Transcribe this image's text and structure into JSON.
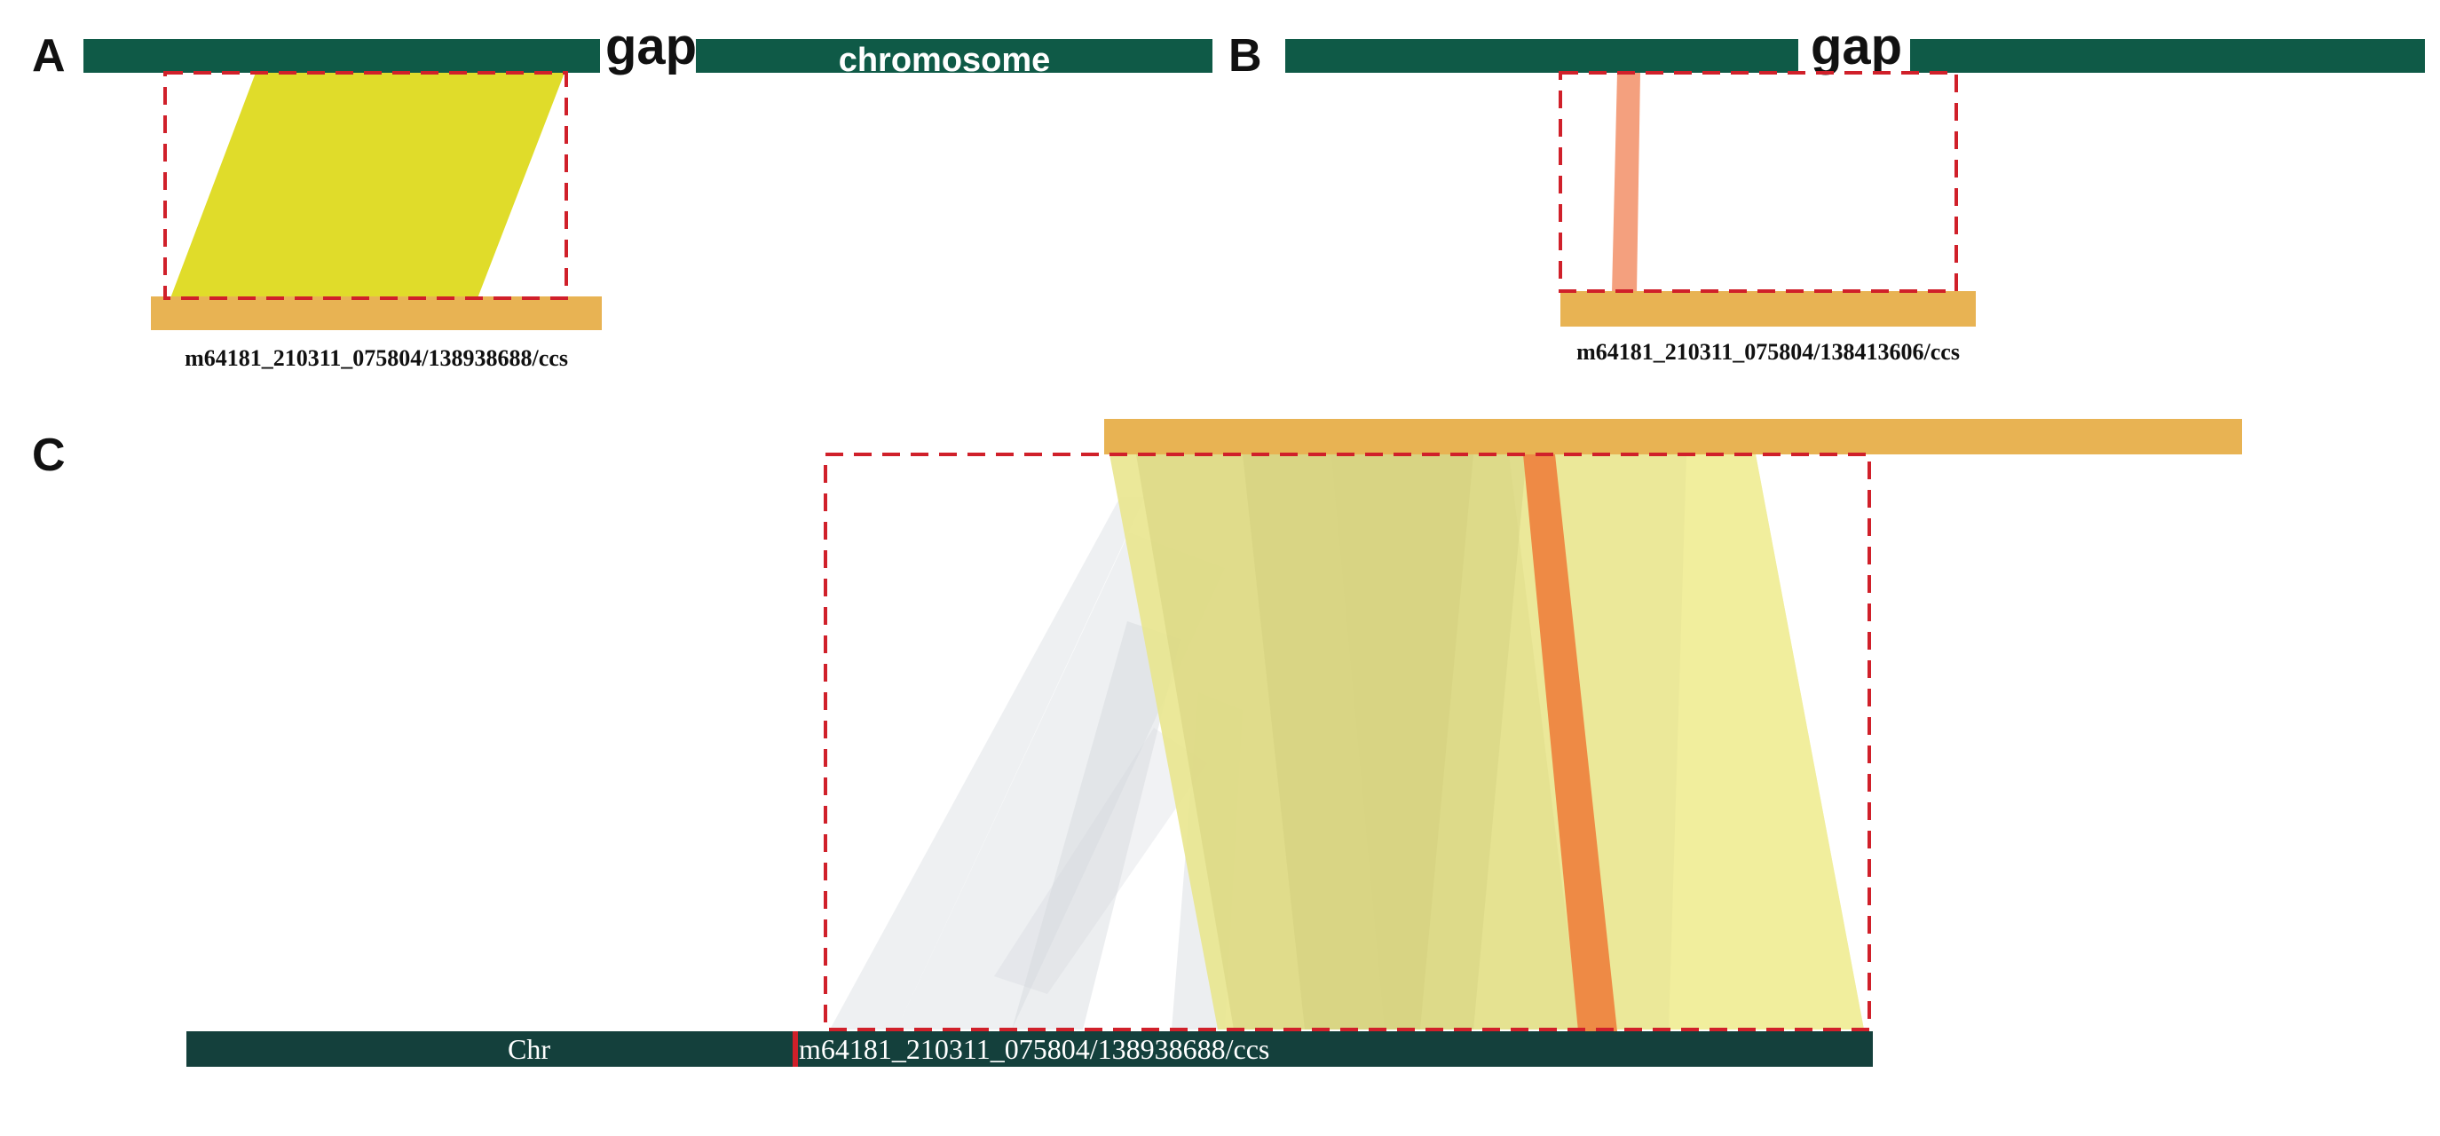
{
  "colors": {
    "chromosome": "#0f5a47",
    "chr_dark": "#14403c",
    "read": "#e8b353",
    "yellow_align": "#e0dc2a",
    "salmon_align": "#f4a07e",
    "orange_align": "#ee8a45",
    "pale_yellow": "#e9e68e",
    "gray_align": "#cfd5d9",
    "dashed_box": "#d0202a",
    "marker": "#d0202a"
  },
  "panels": {
    "A": {
      "letter": "A",
      "gap_label": "gap",
      "chromosome_label": "chromosome",
      "read_label": "m64181_210311_075804/138938688/ccs"
    },
    "B": {
      "letter": "B",
      "gap_label": "gap",
      "read_label": "m64181_210311_075804/138413606/ccs"
    },
    "C": {
      "letter": "C",
      "chr_label": "Chr",
      "read_label": "m64181_210311_075804/138938688/ccs"
    }
  }
}
